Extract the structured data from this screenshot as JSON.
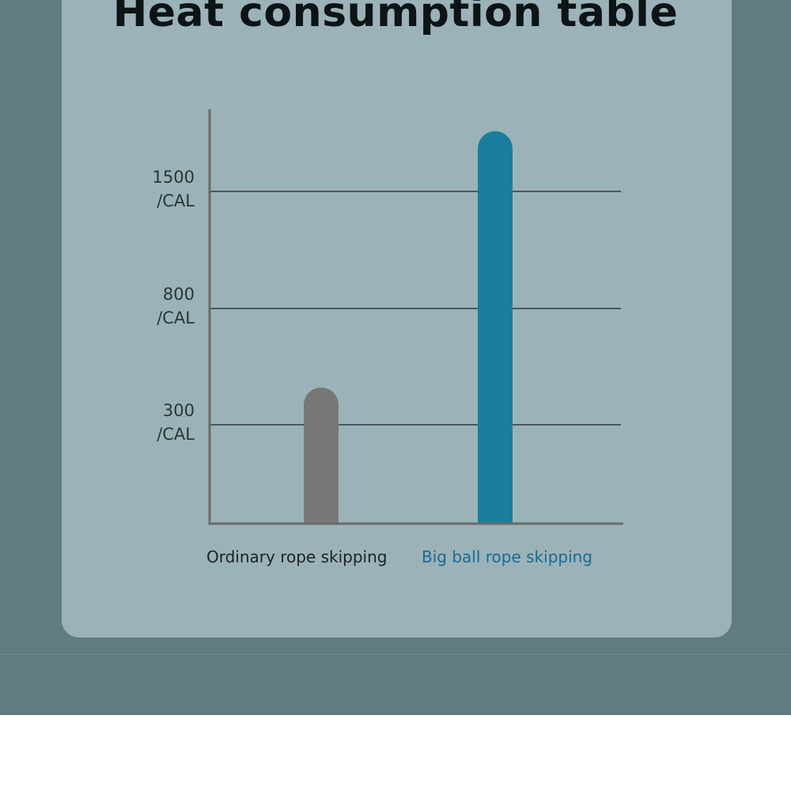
{
  "chart_data": {
    "type": "bar",
    "title": "Heat consumption table",
    "categories": [
      "Ordinary rope skipping",
      "Big ball rope skipping"
    ],
    "values": [
      460,
      1860
    ],
    "y_ticks": [
      {
        "value": 300,
        "label": "300",
        "unit": "/CAL"
      },
      {
        "value": 800,
        "label": "800",
        "unit": "/CAL"
      },
      {
        "value": 1500,
        "label": "1500",
        "unit": "/CAL"
      }
    ],
    "xlabel": "",
    "ylabel": "",
    "grid": true,
    "bar_colors": [
      "#777777",
      "#1a7d9e"
    ],
    "label_colors": [
      "#1e2224",
      "#1a6a93"
    ]
  },
  "colors": {
    "background": "#617c80",
    "card": "#9bb3b8",
    "axis": "#6a6a6a",
    "gridline": "#333b3d"
  }
}
